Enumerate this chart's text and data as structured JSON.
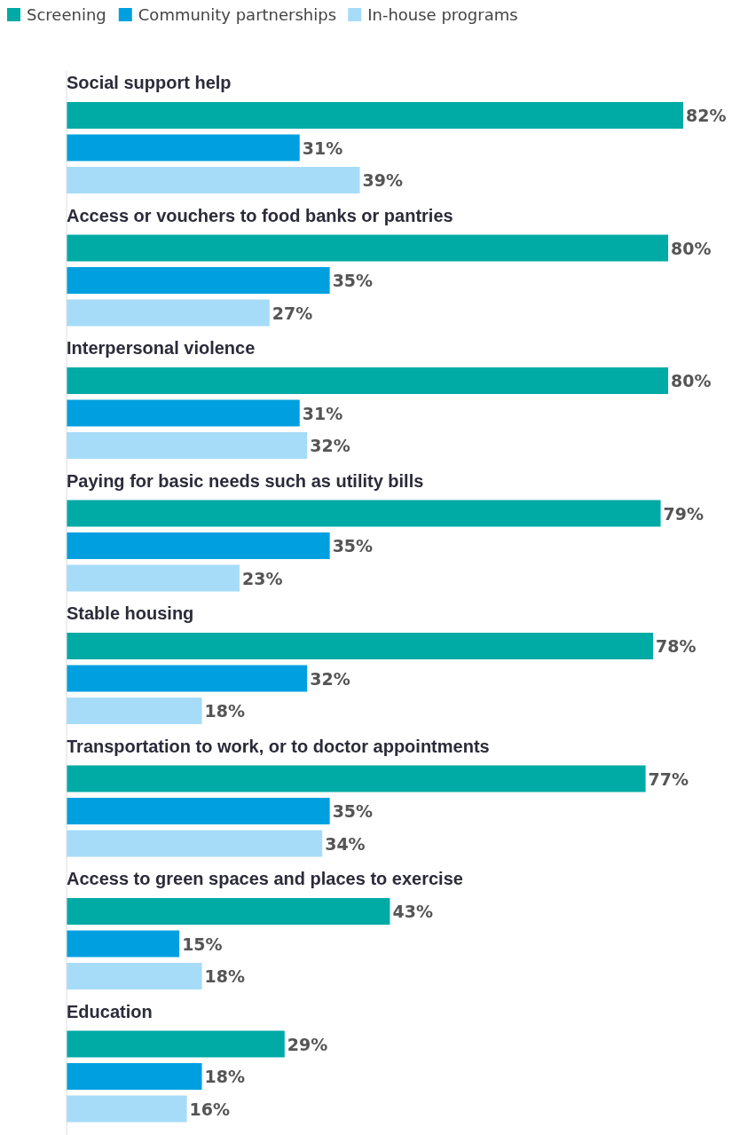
{
  "chart_data": {
    "type": "bar",
    "orientation": "horizontal",
    "legend": "top left",
    "categories": [
      "Social support help",
      "Access or vouchers to food banks or pantries",
      "Interpersonal violence",
      "Paying for basic needs such as utility bills",
      "Stable housing",
      "Transportation to work, or to doctor appointments",
      "Access to green spaces and places to exercise",
      "Education"
    ],
    "series": [
      {
        "name": "Screening",
        "color": "#00aaa5",
        "values": [
          82,
          80,
          80,
          79,
          78,
          77,
          43,
          29
        ],
        "value_labels": [
          "82%",
          "80%",
          "80%",
          "79%",
          "78%",
          "77%",
          "43%",
          "29%"
        ]
      },
      {
        "name": "Community partnerships",
        "color": "#00a0e0",
        "values": [
          31,
          35,
          31,
          35,
          32,
          35,
          15,
          18
        ],
        "value_labels": [
          "31%",
          "35%",
          "31%",
          "35%",
          "32%",
          "35%",
          "15%",
          "18%"
        ]
      },
      {
        "name": "In-house programs",
        "color": "#a6dcf8",
        "values": [
          39,
          27,
          32,
          23,
          18,
          34,
          18,
          16
        ],
        "value_labels": [
          "39%",
          "27%",
          "32%",
          "23%",
          "18%",
          "34%",
          "18%",
          "16%"
        ]
      }
    ]
  }
}
